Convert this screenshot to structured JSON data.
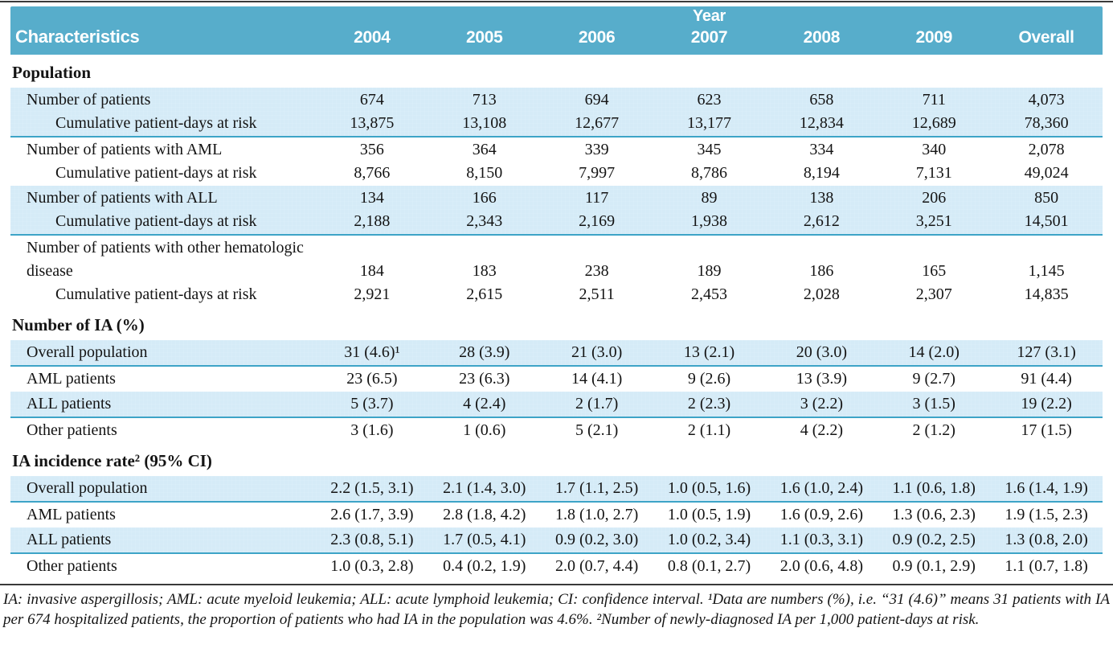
{
  "colors": {
    "header_bg": "#57adcb",
    "stripe_bg": "#d5ebf7",
    "stripe_divider": "#3da4c7",
    "rule": "#3a3a3a",
    "header_text": "#ffffff",
    "body_text": "#141414"
  },
  "table": {
    "header": {
      "characteristics": "Characteristics",
      "year_span_label": "Year",
      "year_columns": [
        "2004",
        "2005",
        "2006",
        "2007",
        "2008",
        "2009"
      ],
      "overall": "Overall"
    },
    "sections": [
      {
        "title": "Population",
        "bands": [
          {
            "shaded": true,
            "rows": [
              {
                "label": "Number of patients",
                "indent": 1,
                "values": [
                  "674",
                  "713",
                  "694",
                  "623",
                  "658",
                  "711",
                  "4,073"
                ]
              },
              {
                "label": "Cumulative patient-days at risk",
                "indent": 2,
                "values": [
                  "13,875",
                  "13,108",
                  "12,677",
                  "13,177",
                  "12,834",
                  "12,689",
                  "78,360"
                ]
              }
            ]
          },
          {
            "shaded": false,
            "rows": [
              {
                "label": "Number of patients with AML",
                "indent": 1,
                "values": [
                  "356",
                  "364",
                  "339",
                  "345",
                  "334",
                  "340",
                  "2,078"
                ]
              },
              {
                "label": "Cumulative patient-days at risk",
                "indent": 2,
                "values": [
                  "8,766",
                  "8,150",
                  "7,997",
                  "8,786",
                  "8,194",
                  "7,131",
                  "49,024"
                ]
              }
            ]
          },
          {
            "shaded": true,
            "rows": [
              {
                "label": "Number of patients with ALL",
                "indent": 1,
                "values": [
                  "134",
                  "166",
                  "117",
                  "89",
                  "138",
                  "206",
                  "850"
                ]
              },
              {
                "label": "Cumulative patient-days at risk",
                "indent": 2,
                "values": [
                  "2,188",
                  "2,343",
                  "2,169",
                  "1,938",
                  "2,612",
                  "3,251",
                  "14,501"
                ]
              }
            ]
          },
          {
            "shaded": false,
            "rows": [
              {
                "label": "Number of patients with other hematologic disease",
                "indent": 1,
                "values": [
                  "184",
                  "183",
                  "238",
                  "189",
                  "186",
                  "165",
                  "1,145"
                ]
              },
              {
                "label": "Cumulative patient-days at risk",
                "indent": 2,
                "values": [
                  "2,921",
                  "2,615",
                  "2,511",
                  "2,453",
                  "2,028",
                  "2,307",
                  "14,835"
                ]
              }
            ]
          }
        ]
      },
      {
        "title": "Number of IA (%)",
        "bands": [
          {
            "shaded": true,
            "rows": [
              {
                "label": "Overall population",
                "indent": 1,
                "values": [
                  "31 (4.6)¹",
                  "28 (3.9)",
                  "21 (3.0)",
                  "13 (2.1)",
                  "20 (3.0)",
                  "14 (2.0)",
                  "127 (3.1)"
                ]
              }
            ]
          },
          {
            "shaded": false,
            "rows": [
              {
                "label": "AML patients",
                "indent": 1,
                "values": [
                  "23 (6.5)",
                  "23 (6.3)",
                  "14 (4.1)",
                  "9 (2.6)",
                  "13 (3.9)",
                  "9 (2.7)",
                  "91 (4.4)"
                ]
              }
            ]
          },
          {
            "shaded": true,
            "rows": [
              {
                "label": "ALL patients",
                "indent": 1,
                "values": [
                  "5 (3.7)",
                  "4 (2.4)",
                  "2 (1.7)",
                  "2 (2.3)",
                  "3 (2.2)",
                  "3 (1.5)",
                  "19 (2.2)"
                ]
              }
            ]
          },
          {
            "shaded": false,
            "rows": [
              {
                "label": "Other patients",
                "indent": 1,
                "values": [
                  "3 (1.6)",
                  "1 (0.6)",
                  "5 (2.1)",
                  "2 (1.1)",
                  "4 (2.2)",
                  "2 (1.2)",
                  "17 (1.5)"
                ]
              }
            ]
          }
        ]
      },
      {
        "title": "IA incidence rate² (95% CI)",
        "bands": [
          {
            "shaded": true,
            "rows": [
              {
                "label": "Overall population",
                "indent": 1,
                "values": [
                  "2.2 (1.5, 3.1)",
                  "2.1 (1.4, 3.0)",
                  "1.7 (1.1, 2.5)",
                  "1.0 (0.5, 1.6)",
                  "1.6 (1.0, 2.4)",
                  "1.1 (0.6, 1.8)",
                  "1.6 (1.4, 1.9)"
                ]
              }
            ]
          },
          {
            "shaded": false,
            "rows": [
              {
                "label": "AML patients",
                "indent": 1,
                "values": [
                  "2.6 (1.7, 3.9)",
                  "2.8 (1.8, 4.2)",
                  "1.8 (1.0, 2.7)",
                  "1.0 (0.5, 1.9)",
                  "1.6 (0.9, 2.6)",
                  "1.3 (0.6, 2.3)",
                  "1.9 (1.5, 2.3)"
                ]
              }
            ]
          },
          {
            "shaded": true,
            "rows": [
              {
                "label": "ALL patients",
                "indent": 1,
                "values": [
                  "2.3 (0.8, 5.1)",
                  "1.7 (0.5, 4.1)",
                  "0.9 (0.2, 3.0)",
                  "1.0 (0.2, 3.4)",
                  "1.1 (0.3, 3.1)",
                  "0.9 (0.2, 2.5)",
                  "1.3 (0.8, 2.0)"
                ]
              }
            ]
          },
          {
            "shaded": false,
            "rows": [
              {
                "label": "Other patients",
                "indent": 1,
                "values": [
                  "1.0 (0.3, 2.8)",
                  "0.4 (0.2, 1.9)",
                  "2.0 (0.7, 4.4)",
                  "0.8 (0.1, 2.7)",
                  "2.0 (0.6, 4.8)",
                  "0.9 (0.1, 2.9)",
                  "1.1 (0.7, 1.8)"
                ]
              }
            ]
          }
        ]
      }
    ],
    "footnote": "IA: invasive aspergillosis; AML: acute myeloid leukemia; ALL: acute lymphoid leukemia; CI: confidence interval. ¹Data are numbers (%), i.e. “31 (4.6)” means 31 patients with IA per 674 hospitalized patients, the proportion of patients who had IA in the population was 4.6%. ²Number of newly-diagnosed IA per 1,000 patient-days at risk."
  }
}
